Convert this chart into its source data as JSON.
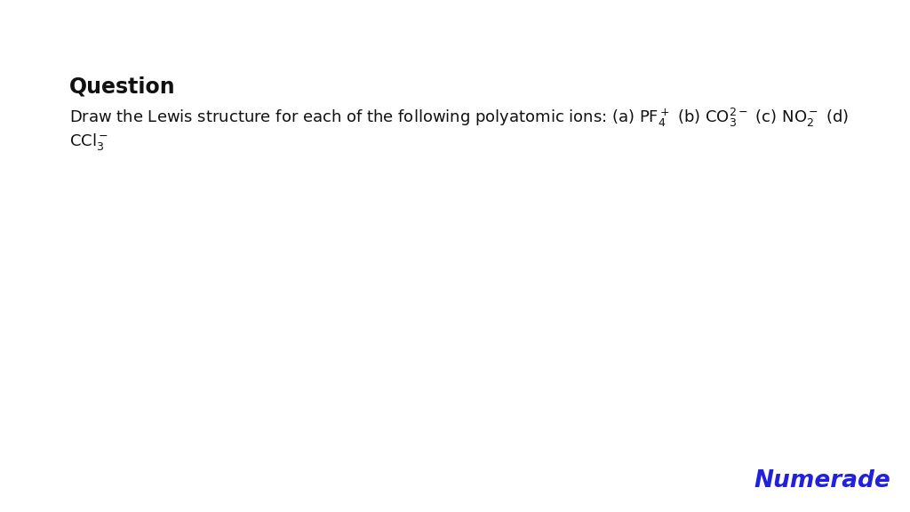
{
  "background_color": "#ffffff",
  "question_label": "Question",
  "question_fontsize": 17,
  "question_bold": true,
  "body_fontsize": 13,
  "line1": "Draw the Lewis structure for each of the following polyatomic ions: (a) $\\mathregular{PF_4^+}$ (b) $\\mathregular{CO_3^{2-}}$ (c) $\\mathregular{NO_2^-}$ (d)",
  "line2": "$\\mathregular{CCl_3^-}$",
  "numerade_text": "Numerade",
  "numerade_fontsize": 19,
  "numerade_color": "#2020dd",
  "text_color": "#111111",
  "fig_width": 10.24,
  "fig_height": 5.76,
  "dpi": 100
}
